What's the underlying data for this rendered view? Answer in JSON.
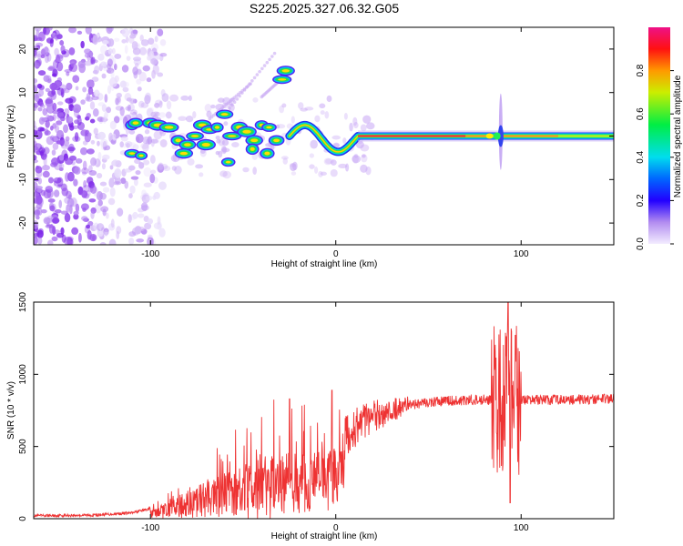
{
  "title": "S225.2025.327.06.32.G05",
  "chart_data": [
    {
      "type": "heatmap",
      "name": "spectrogram",
      "xlabel": "Height of straight line (km)",
      "ylabel": "Frequency (Hz)",
      "xlim": [
        -163,
        150
      ],
      "ylim": [
        -25,
        25
      ],
      "xticks": [
        -100,
        0,
        100
      ],
      "yticks": [
        -20,
        -10,
        0,
        10,
        20
      ],
      "colorbar": {
        "label": "Normalized spectral amplitude",
        "range": [
          0,
          1
        ],
        "ticks": [
          0.0,
          0.2,
          0.4,
          0.6,
          0.8
        ]
      },
      "features": {
        "noise_region_x": [
          -163,
          -105
        ],
        "main_line": {
          "x_start": 12,
          "x_end": 150,
          "freq": 0
        },
        "burst_x": [
          -118,
          -30
        ],
        "spike_x": 89
      }
    },
    {
      "type": "line",
      "name": "snr",
      "xlabel": "Height of straight line (km)",
      "ylabel": "SNR (10 * v/v)",
      "xlim": [
        -163,
        150
      ],
      "ylim": [
        0,
        1500
      ],
      "xticks": [
        -100,
        0,
        100
      ],
      "yticks": [
        0,
        500,
        1000,
        1500
      ],
      "color": "#ee3333",
      "envelope": [
        [
          -163,
          20
        ],
        [
          -130,
          25
        ],
        [
          -110,
          40
        ],
        [
          -100,
          70
        ],
        [
          -90,
          130
        ],
        [
          -80,
          200
        ],
        [
          -70,
          260
        ],
        [
          -60,
          320
        ],
        [
          -50,
          380
        ],
        [
          -40,
          420
        ],
        [
          -30,
          470
        ],
        [
          -20,
          500
        ],
        [
          -10,
          530
        ],
        [
          0,
          560
        ],
        [
          10,
          620
        ],
        [
          20,
          700
        ],
        [
          30,
          760
        ],
        [
          40,
          790
        ],
        [
          50,
          805
        ],
        [
          60,
          815
        ],
        [
          70,
          822
        ],
        [
          80,
          825
        ],
        [
          90,
          815
        ],
        [
          100,
          820
        ],
        [
          110,
          825
        ],
        [
          130,
          825
        ],
        [
          150,
          830
        ]
      ],
      "peaks": [
        {
          "x": -25,
          "y": 830
        },
        {
          "x": -2,
          "y": 890
        },
        {
          "x": 93,
          "y": 1500
        },
        {
          "x": 94,
          "y": 110
        },
        {
          "x": 97,
          "y": 1270
        }
      ]
    }
  ]
}
